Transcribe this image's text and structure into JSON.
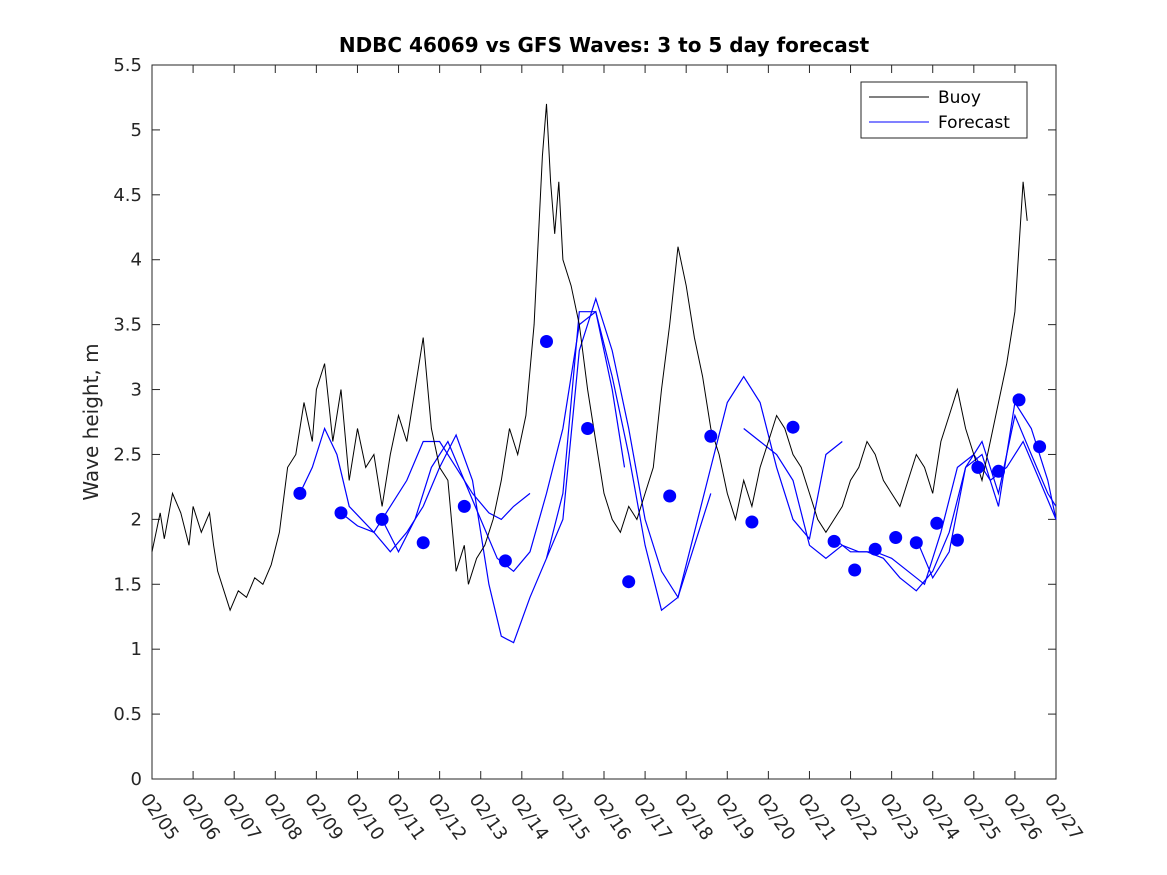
{
  "chart_data": {
    "type": "line",
    "title": "NDBC 46069 vs GFS Waves: 3 to 5 day forecast",
    "xlabel": "",
    "ylabel": "Wave height, m",
    "xlim": [
      0,
      22
    ],
    "ylim": [
      0,
      5.5
    ],
    "x_tick_labels": [
      "02/05",
      "02/06",
      "02/07",
      "02/08",
      "02/09",
      "02/10",
      "02/11",
      "02/12",
      "02/13",
      "02/14",
      "02/15",
      "02/16",
      "02/17",
      "02/18",
      "02/19",
      "02/20",
      "02/21",
      "02/22",
      "02/23",
      "02/24",
      "02/25",
      "02/26",
      "02/27"
    ],
    "y_ticks": [
      0,
      0.5,
      1,
      1.5,
      2,
      2.5,
      3,
      3.5,
      4,
      4.5,
      5,
      5.5
    ],
    "y_tick_labels": [
      "0",
      "0.5",
      "1",
      "1.5",
      "2",
      "2.5",
      "3",
      "3.5",
      "4",
      "4.5",
      "5",
      "5.5"
    ],
    "legend": {
      "placement": "top-right",
      "entries": [
        "Buoy",
        "Forecast"
      ]
    },
    "colors": {
      "buoy": "#000000",
      "forecast": "#0000ff",
      "axis": "#262626"
    },
    "buoy_series": {
      "name": "Buoy",
      "x": [
        0,
        0.2,
        0.3,
        0.5,
        0.7,
        0.9,
        1.0,
        1.2,
        1.4,
        1.5,
        1.6,
        1.8,
        1.9,
        2.1,
        2.3,
        2.5,
        2.7,
        2.9,
        3.1,
        3.3,
        3.5,
        3.7,
        3.9,
        4.0,
        4.2,
        4.4,
        4.6,
        4.8,
        5.0,
        5.2,
        5.4,
        5.6,
        5.8,
        6.0,
        6.2,
        6.4,
        6.6,
        6.8,
        7.0,
        7.2,
        7.4,
        7.6,
        7.7,
        7.9,
        8.1,
        8.3,
        8.5,
        8.7,
        8.9,
        9.1,
        9.3,
        9.5,
        9.6,
        9.7,
        9.8,
        9.9,
        10.0,
        10.2,
        10.4,
        10.6,
        10.8,
        11.0,
        11.2,
        11.4,
        11.6,
        11.8,
        12.0,
        12.2,
        12.4,
        12.6,
        12.8,
        13.0,
        13.2,
        13.4,
        13.6,
        13.8,
        14.0,
        14.2,
        14.4,
        14.6,
        14.8,
        15.0,
        15.2,
        15.4,
        15.6,
        15.8,
        16.0,
        16.2,
        16.4,
        16.6,
        16.8,
        17.0,
        17.2,
        17.4,
        17.6,
        17.8,
        18.0,
        18.2,
        18.4,
        18.6,
        18.8,
        19.0,
        19.2,
        19.4,
        19.6,
        19.8,
        20.0,
        20.2,
        20.4,
        20.6,
        20.8,
        21.0,
        21.1,
        21.2,
        21.3
      ],
      "values": [
        1.75,
        2.05,
        1.85,
        2.2,
        2.05,
        1.8,
        2.1,
        1.9,
        2.05,
        1.8,
        1.6,
        1.4,
        1.3,
        1.45,
        1.4,
        1.55,
        1.5,
        1.65,
        1.9,
        2.4,
        2.5,
        2.9,
        2.6,
        3.0,
        3.2,
        2.6,
        3.0,
        2.3,
        2.7,
        2.4,
        2.5,
        2.1,
        2.5,
        2.8,
        2.6,
        3.0,
        3.4,
        2.7,
        2.4,
        2.3,
        1.6,
        1.8,
        1.5,
        1.7,
        1.8,
        2.0,
        2.3,
        2.7,
        2.5,
        2.8,
        3.5,
        4.8,
        5.2,
        4.6,
        4.2,
        4.6,
        4.0,
        3.8,
        3.5,
        3.0,
        2.6,
        2.2,
        2.0,
        1.9,
        2.1,
        2.0,
        2.2,
        2.4,
        3.0,
        3.5,
        4.1,
        3.8,
        3.4,
        3.1,
        2.7,
        2.5,
        2.2,
        2.0,
        2.3,
        2.1,
        2.4,
        2.6,
        2.8,
        2.7,
        2.5,
        2.4,
        2.2,
        2.0,
        1.9,
        2.0,
        2.1,
        2.3,
        2.4,
        2.6,
        2.5,
        2.3,
        2.2,
        2.1,
        2.3,
        2.5,
        2.4,
        2.2,
        2.6,
        2.8,
        3.0,
        2.7,
        2.5,
        2.3,
        2.6,
        2.9,
        3.2,
        3.6,
        4.1,
        4.6,
        4.3
      ]
    },
    "forecast_series": [
      {
        "name": "Forecast",
        "x": [
          3.6,
          3.9,
          4.2,
          4.5,
          4.8,
          5.1,
          5.4,
          5.8,
          6.2,
          6.6,
          7.0,
          7.4,
          7.8,
          8.2,
          8.5,
          8.8,
          9.2
        ],
        "values": [
          2.2,
          2.4,
          2.7,
          2.5,
          2.1,
          2.0,
          1.9,
          2.1,
          2.3,
          2.6,
          2.6,
          2.4,
          2.2,
          2.05,
          2.0,
          2.1,
          2.2
        ]
      },
      {
        "name": "Forecast",
        "x": [
          4.6,
          5.0,
          5.4,
          5.8,
          6.2,
          6.6,
          7.0,
          7.4,
          7.8,
          8.2,
          8.5,
          8.8,
          9.2,
          9.6,
          10.0,
          10.4,
          10.8,
          11.2,
          11.5
        ],
        "values": [
          2.05,
          1.95,
          1.9,
          1.75,
          1.9,
          2.1,
          2.4,
          2.65,
          2.3,
          1.5,
          1.1,
          1.05,
          1.4,
          1.7,
          2.2,
          3.6,
          3.6,
          3.0,
          2.4
        ]
      },
      {
        "name": "Forecast",
        "x": [
          5.6,
          6.0,
          6.4,
          6.8,
          7.2,
          7.6,
          8.0,
          8.4,
          8.8,
          9.2,
          9.6,
          10.0,
          10.4,
          10.8,
          11.2,
          11.6,
          12.0,
          12.4,
          12.8,
          13.2,
          13.6
        ],
        "values": [
          2.0,
          1.75,
          2.0,
          2.4,
          2.6,
          2.3,
          2.0,
          1.7,
          1.6,
          1.75,
          2.2,
          2.7,
          3.5,
          3.6,
          3.1,
          2.5,
          1.8,
          1.3,
          1.4,
          1.8,
          2.2
        ]
      },
      {
        "name": "Forecast",
        "x": [
          9.6,
          10.0,
          10.4,
          10.8,
          11.2,
          11.6,
          12.0,
          12.4,
          12.8,
          13.2,
          13.6,
          14.0,
          14.4,
          14.8,
          15.2,
          15.6,
          16.0,
          16.4,
          16.8
        ],
        "values": [
          1.7,
          2.0,
          3.3,
          3.7,
          3.3,
          2.7,
          2.0,
          1.6,
          1.4,
          1.9,
          2.4,
          2.9,
          3.1,
          2.9,
          2.4,
          2.0,
          1.85,
          2.5,
          2.6
        ]
      },
      {
        "name": "Forecast",
        "x": [
          14.4,
          14.8,
          15.2,
          15.6,
          16.0,
          16.4,
          16.8,
          17.2,
          17.6,
          18.0,
          18.4,
          18.8,
          19.2,
          19.6,
          20.0,
          20.4,
          20.8,
          21.2,
          21.6,
          22.0
        ],
        "values": [
          2.7,
          2.6,
          2.5,
          2.3,
          1.8,
          1.7,
          1.8,
          1.75,
          1.75,
          1.7,
          1.6,
          1.5,
          1.9,
          2.4,
          2.5,
          2.3,
          2.4,
          2.6,
          2.3,
          2.0
        ]
      },
      {
        "name": "Forecast",
        "x": [
          16.6,
          17.0,
          17.4,
          17.8,
          18.2,
          18.6,
          19.0,
          19.4,
          19.8,
          20.2,
          20.6,
          21.0,
          21.4,
          21.8,
          22.0
        ],
        "values": [
          1.85,
          1.75,
          1.75,
          1.7,
          1.55,
          1.45,
          1.6,
          1.9,
          2.4,
          2.6,
          2.2,
          2.8,
          2.5,
          2.2,
          2.1
        ]
      },
      {
        "name": "Forecast",
        "x": [
          18.6,
          19.0,
          19.4,
          19.8,
          20.2,
          20.6,
          21.0,
          21.4,
          21.8,
          22.0
        ],
        "values": [
          1.85,
          1.55,
          1.75,
          2.4,
          2.5,
          2.1,
          2.9,
          2.7,
          2.3,
          2.0
        ]
      }
    ],
    "forecast_markers": {
      "name": "Forecast",
      "x": [
        3.6,
        4.6,
        5.6,
        6.6,
        7.6,
        8.6,
        9.6,
        10.6,
        11.6,
        12.6,
        13.6,
        14.6,
        15.6,
        16.6,
        17.1,
        17.6,
        18.1,
        18.6,
        19.1,
        19.6,
        20.1,
        20.6,
        21.1,
        21.6
      ],
      "values": [
        2.2,
        2.05,
        2.0,
        1.82,
        2.1,
        1.68,
        3.37,
        2.7,
        1.52,
        2.18,
        2.64,
        1.98,
        2.71,
        1.83,
        1.61,
        1.77,
        1.86,
        1.82,
        1.97,
        1.84,
        2.4,
        2.37,
        2.92,
        2.56
      ]
    }
  }
}
